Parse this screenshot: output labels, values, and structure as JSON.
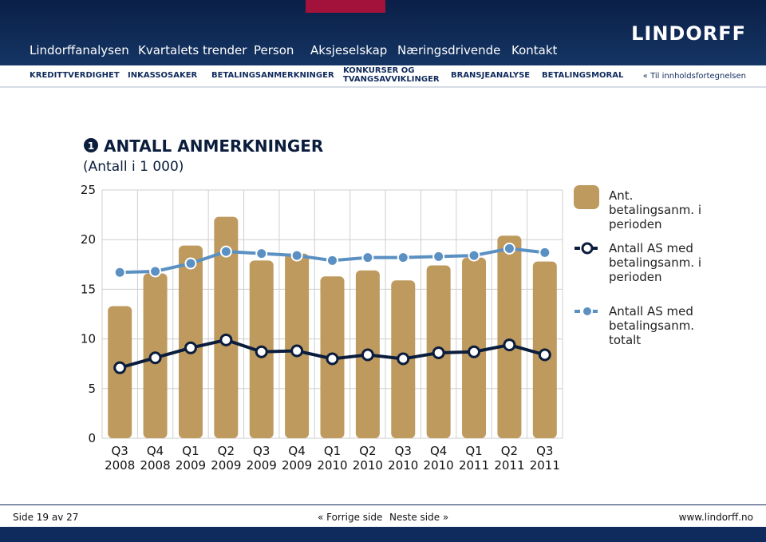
{
  "nav": [
    "Lindorffanalysen",
    "Kvartalets trender",
    "Person",
    "Aksjeselskap",
    "Næringsdrivende",
    "Kontakt"
  ],
  "logo": "LINDORFF",
  "subnav": [
    "KREDITTVERDIGHET",
    "INKASSOSAKER",
    "BETALINGSANMERKNINGER",
    "KONKURSER OG TVANGSAVVIKLINGER",
    "BRANSJEANALYSE",
    "BETALINGSMORAL"
  ],
  "toc_link": "« Til innholdsfortegnelsen",
  "figure_number": "1",
  "chart_data": {
    "type": "combo",
    "title": "ANTALL ANMERKNINGER",
    "subtitle": "(Antall i 1 000)",
    "categories": [
      "Q3 2008",
      "Q4 2008",
      "Q1 2009",
      "Q2 2009",
      "Q3 2009",
      "Q4 2009",
      "Q1 2010",
      "Q2 2010",
      "Q3 2010",
      "Q4 2010",
      "Q1 2011",
      "Q2 2011",
      "Q3 2011"
    ],
    "series": [
      {
        "name": "Ant. betalingsanm. i perioden",
        "type": "bar",
        "color": "#bf9a5e",
        "values": [
          13.3,
          16.6,
          19.4,
          22.3,
          17.9,
          18.6,
          16.3,
          16.9,
          15.9,
          17.4,
          18.2,
          20.4,
          17.8
        ]
      },
      {
        "name": "Antall AS med betalingsanm. i perioden",
        "type": "line",
        "color": "#0b1d3d",
        "values": [
          7.1,
          8.1,
          9.1,
          9.9,
          8.7,
          8.8,
          8.0,
          8.4,
          8.0,
          8.6,
          8.7,
          9.4,
          8.4
        ]
      },
      {
        "name": "Antall AS med betalingsanm. totalt",
        "type": "line",
        "color": "#5b90c2",
        "values": [
          16.7,
          16.8,
          17.6,
          18.8,
          18.6,
          18.4,
          17.9,
          18.2,
          18.2,
          18.3,
          18.4,
          19.1,
          18.7
        ]
      }
    ],
    "ylim": [
      0,
      25
    ],
    "yticks": [
      0,
      5,
      10,
      15,
      20,
      25
    ],
    "grid": true
  },
  "footer": {
    "page": "Side 19 av 27",
    "prev": "« Forrige side",
    "next": "Neste side »",
    "url": "www.lindorff.no"
  }
}
